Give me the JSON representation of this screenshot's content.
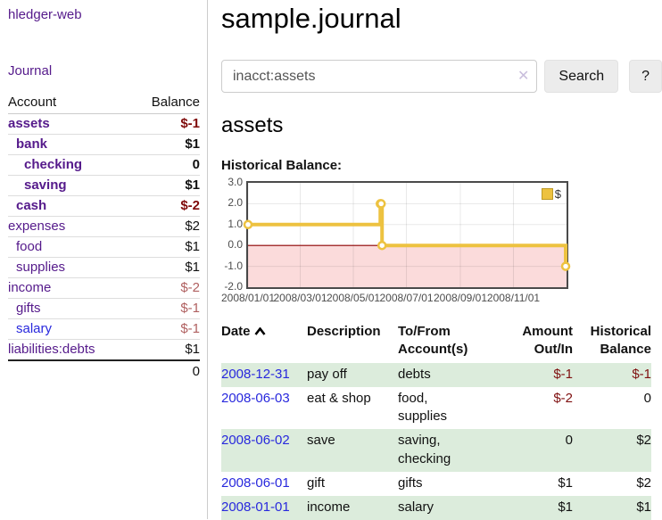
{
  "brand": "hledger-web",
  "nav": {
    "journal": "Journal"
  },
  "sidebar_table": {
    "headers": {
      "account": "Account",
      "balance": "Balance"
    },
    "accounts": [
      {
        "label": "assets",
        "level": 1,
        "bold": true,
        "balance": "$-1",
        "link": "visited"
      },
      {
        "label": "bank",
        "level": 2,
        "bold": true,
        "balance": "$1",
        "link": "visited"
      },
      {
        "label": "checking",
        "level": 3,
        "bold": true,
        "balance": "0",
        "link": "visited"
      },
      {
        "label": "saving",
        "level": 3,
        "bold": true,
        "balance": "$1",
        "link": "visited"
      },
      {
        "label": "cash",
        "level": 2,
        "bold": true,
        "balance": "$-2",
        "link": "visited"
      },
      {
        "label": "expenses",
        "level": 1,
        "bold": false,
        "balance": "$2",
        "link": "visited"
      },
      {
        "label": "food",
        "level": 2,
        "bold": false,
        "balance": "$1",
        "link": "visited"
      },
      {
        "label": "supplies",
        "level": 2,
        "bold": false,
        "balance": "$1",
        "link": "visited"
      },
      {
        "label": "income",
        "level": 1,
        "bold": false,
        "balance": "$-2",
        "link": "visited"
      },
      {
        "label": "gifts",
        "level": 2,
        "bold": false,
        "balance": "$-1",
        "link": "visited"
      },
      {
        "label": "salary",
        "level": 2,
        "bold": false,
        "balance": "$-1",
        "link": "unvisited"
      },
      {
        "label": "liabilities:debts",
        "level": 1,
        "bold": false,
        "balance": "$1",
        "link": "visited"
      }
    ],
    "total": "0"
  },
  "header": {
    "title": "sample.journal"
  },
  "search": {
    "value": "inacct:assets",
    "clear_icon": "✕",
    "button": "Search",
    "help": "?"
  },
  "account_page": {
    "heading": "assets",
    "chart_label": "Historical Balance:"
  },
  "chart_data": {
    "type": "line",
    "style": "step",
    "title": "Historical Balance",
    "series": [
      {
        "name": "$",
        "color": "#edc240",
        "points": [
          [
            "2008-01-01",
            1
          ],
          [
            "2008-06-01",
            2
          ],
          [
            "2008-06-02",
            2
          ],
          [
            "2008-06-03",
            0
          ],
          [
            "2008-12-31",
            -1
          ]
        ]
      }
    ],
    "x_range": [
      "2008-01-01",
      "2009-01-01"
    ],
    "x_ticks": [
      "2008/01/01",
      "2008/03/01",
      "2008/05/01",
      "2008/07/01",
      "2008/09/01",
      "2008/11/01"
    ],
    "y_ticks": [
      "3.0",
      "2.0",
      "1.0",
      "0.0",
      "-1.0",
      "-2.0"
    ],
    "ylim": [
      -2,
      3
    ],
    "grid": true,
    "negative_region_color": "#fbdbdb",
    "zero_line_color": "#8b0000",
    "legend": {
      "label": "$",
      "position": "top-right"
    }
  },
  "register": {
    "headers": {
      "date": "Date",
      "description": "Description",
      "to_from": "To/From Account(s)",
      "amount": "Amount Out/In",
      "historical": "Historical Balance"
    },
    "sort_icon": "chevron-up",
    "rows": [
      {
        "date": "2008-12-31",
        "description": "pay off",
        "to_from": "debts",
        "amount": "$-1",
        "historical": "$-1"
      },
      {
        "date": "2008-06-03",
        "description": "eat & shop",
        "to_from": "food, supplies",
        "amount": "$-2",
        "historical": "0"
      },
      {
        "date": "2008-06-02",
        "description": "save",
        "to_from": "saving, checking",
        "amount": "0",
        "historical": "$2"
      },
      {
        "date": "2008-06-01",
        "description": "gift",
        "to_from": "gifts",
        "amount": "$1",
        "historical": "$2"
      },
      {
        "date": "2008-01-01",
        "description": "income",
        "to_from": "salary",
        "amount": "$1",
        "historical": "$1"
      }
    ]
  },
  "colors": {
    "link_purple": "#551a8b",
    "link_blue": "#2828dd",
    "negative_dark": "#7f0b0b",
    "negative_light": "#b06060",
    "row_green": "#dcecdc",
    "series_gold": "#edc240"
  }
}
